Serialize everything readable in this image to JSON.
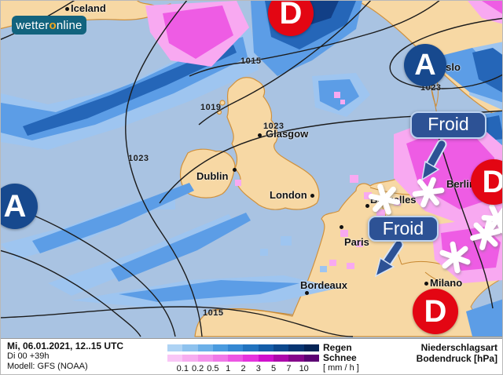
{
  "logo": {
    "prefix": "wetter",
    "accent": "o",
    "suffix": "nline"
  },
  "map": {
    "cities": [
      {
        "name": "Iceland"
      },
      {
        "name": "Oslo"
      },
      {
        "name": "Glasgow"
      },
      {
        "name": "Dublin"
      },
      {
        "name": "London"
      },
      {
        "name": "Bruxelles"
      },
      {
        "name": "Berlin"
      },
      {
        "name": "Paris"
      },
      {
        "name": "Bordeaux"
      },
      {
        "name": "Milano"
      }
    ],
    "pressure_labels": [
      {
        "value": "1015"
      },
      {
        "value": "1019"
      },
      {
        "value": "1023"
      },
      {
        "value": "1023"
      },
      {
        "value": "1023"
      },
      {
        "value": "1015"
      }
    ],
    "pressure_centers": [
      {
        "letter": "D"
      },
      {
        "letter": "A"
      },
      {
        "letter": "A"
      },
      {
        "letter": "D"
      },
      {
        "letter": "D"
      }
    ],
    "annotations": [
      {
        "label": "Froid"
      },
      {
        "label": "Froid"
      }
    ]
  },
  "legend": {
    "datetime": "Mi, 06.01.2021, 12..15 UTC",
    "run": "Di 00 +39h",
    "model": "Modell: GFS (NOAA)",
    "rain_label": "Regen",
    "snow_label": "Schnee",
    "unit_label": "[ mm / h ]",
    "ticks": [
      "0.1",
      "0.2",
      "0.5",
      "1",
      "2",
      "3",
      "5",
      "7",
      "10"
    ],
    "rain_colors": [
      "#aed3f4",
      "#8ec2ee",
      "#6cb0e8",
      "#4a9bdf",
      "#3488d3",
      "#2173bf",
      "#145da8",
      "#0c488d",
      "#073572",
      "#042456"
    ],
    "snow_colors": [
      "#f9c6f6",
      "#f7adf0",
      "#f493ec",
      "#f078e8",
      "#ec55e3",
      "#e532dd",
      "#cf10cc",
      "#ac08aa",
      "#85058a",
      "#5c0273"
    ],
    "right_line1": "Niederschlagsart",
    "right_line2": "Bodendruck [hPa]"
  },
  "colors": {
    "sea": "#a9c3e2",
    "land": "#f7d8a4",
    "coastline": "#d0913c",
    "low_center": "#e30613",
    "high_center": "#17498e",
    "annotation_blue": "#2d5295",
    "logo_teal": "#12637e",
    "logo_accent": "#f2a61c"
  }
}
